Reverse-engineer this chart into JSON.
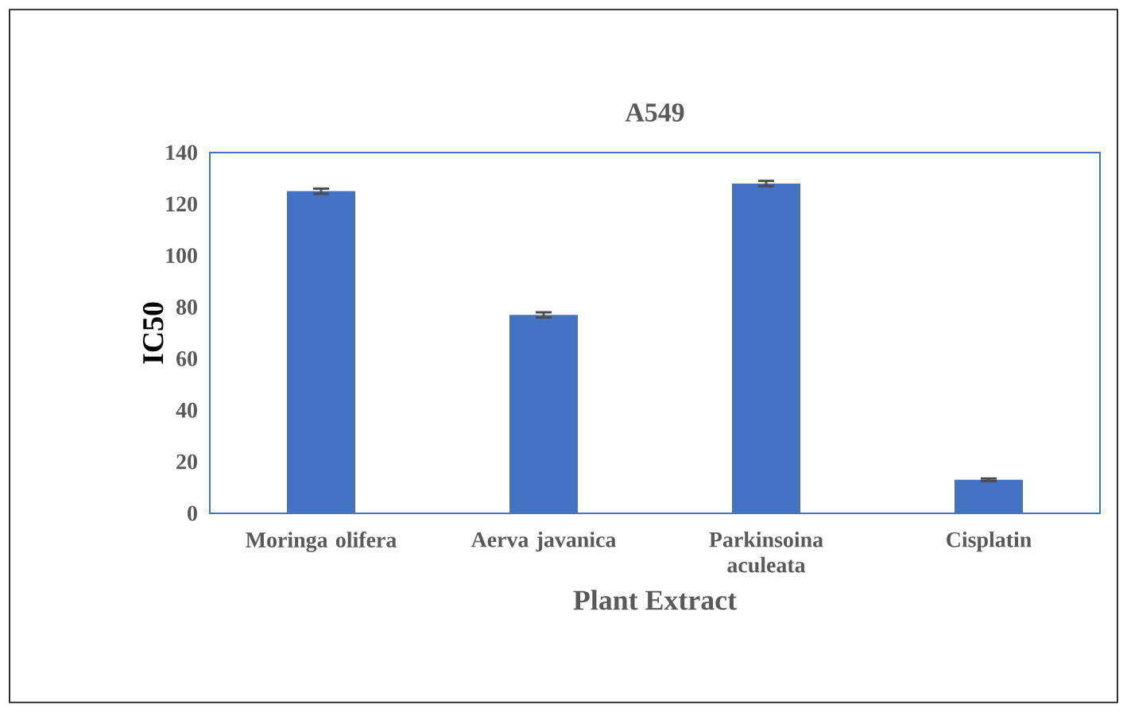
{
  "chart_data": {
    "type": "bar",
    "title": "A549",
    "xlabel": "Plant Extract",
    "ylabel": "IC50",
    "categories": [
      "Moringa olifera",
      "Aerva javanica",
      "Parkinsoina aculeata",
      "Cisplatin"
    ],
    "values": [
      125,
      77,
      128,
      13
    ],
    "errors": [
      1,
      1,
      1,
      0.5
    ],
    "color": "#4472c4",
    "ylim": [
      0,
      140
    ],
    "yticks": [
      0,
      20,
      40,
      60,
      80,
      100,
      120,
      140
    ]
  }
}
